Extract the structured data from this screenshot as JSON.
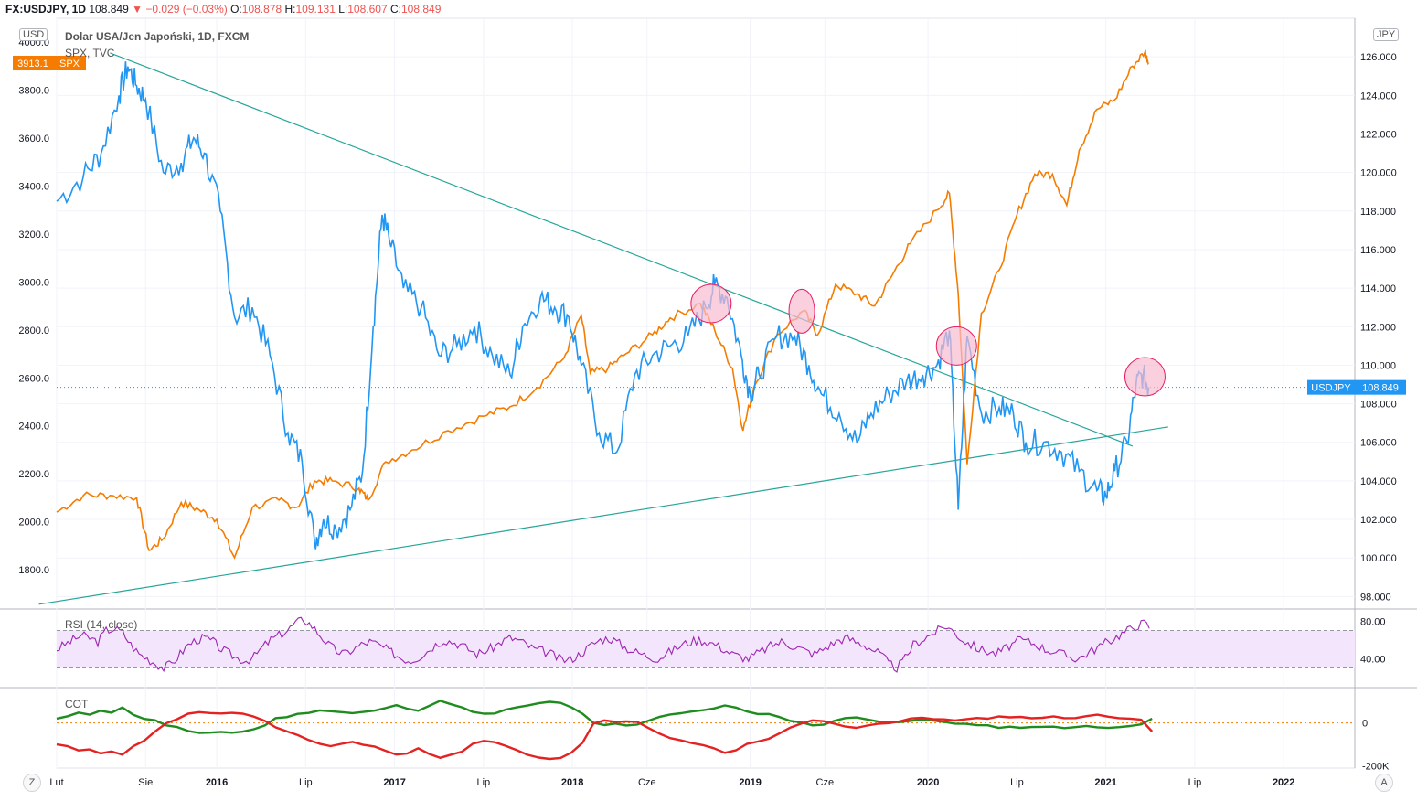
{
  "header": {
    "symbol": "FX:USDJPY, 1D",
    "price": "108.849",
    "change": "−0.029 (−0.03%)",
    "o_label": "O:",
    "o": "108.878",
    "h_label": "H:",
    "h": "109.131",
    "l_label": "L:",
    "l": "108.607",
    "c_label": "C:",
    "c": "108.849"
  },
  "legend": {
    "main": "Dolar USA/Jen Japoński, 1D, FXCM",
    "compare": "SPX, TVC"
  },
  "scale_tags": {
    "left": "USD",
    "right": "JPY"
  },
  "corner_buttons": {
    "left": "Z",
    "right": "A"
  },
  "colors": {
    "usdjpy": "#2196f3",
    "spx": "#f57c00",
    "trendline": "#26a69a",
    "rsi": "#9c27b0",
    "rsi_band": "#f3e5fc",
    "cot_long": "#1e8c1e",
    "cot_short": "#e52222",
    "circle": "#f8bbd0",
    "grid": "#f0f3fa"
  },
  "chart_data": [
    {
      "type": "line",
      "title": "Dolar USA/Jen Japoński, 1D, FXCM",
      "x_ticks": [
        "Lut",
        "Sie",
        "2016",
        "Lip",
        "2017",
        "Lip",
        "2018",
        "Cze",
        "2019",
        "Cze",
        "2020",
        "Lip",
        "2021",
        "Lip",
        "2022"
      ],
      "left_axis": {
        "unit": "USD",
        "ticks": [
          "4000.0",
          "3800.0",
          "3600.0",
          "3400.0",
          "3200.0",
          "3000.0",
          "2800.0",
          "2600.0",
          "2400.0",
          "2200.0",
          "2000.0",
          "1800.0"
        ],
        "ylim": [
          1640,
          4100
        ]
      },
      "right_axis": {
        "unit": "JPY",
        "ticks": [
          "126.000",
          "124.000",
          "122.000",
          "120.000",
          "118.000",
          "116.000",
          "114.000",
          "112.000",
          "110.000",
          "108.000",
          "106.000",
          "104.000",
          "102.000",
          "100.000",
          "98.000"
        ],
        "ylim": [
          97.4,
          128
        ]
      },
      "series": [
        {
          "name": "USDJPY",
          "axis": "right",
          "last_label": "108.849",
          "points": [
            [
              2015.1,
              118.5
            ],
            [
              2015.25,
              119.8
            ],
            [
              2015.35,
              121.0
            ],
            [
              2015.45,
              124.0
            ],
            [
              2015.5,
              125.5
            ],
            [
              2015.55,
              124.5
            ],
            [
              2015.6,
              123.8
            ],
            [
              2015.7,
              120.0
            ],
            [
              2015.8,
              120.5
            ],
            [
              2015.87,
              121.8
            ],
            [
              2015.93,
              121.0
            ],
            [
              2016.02,
              118.0
            ],
            [
              2016.1,
              112.5
            ],
            [
              2016.2,
              113.0
            ],
            [
              2016.3,
              110.5
            ],
            [
              2016.4,
              106.5
            ],
            [
              2016.48,
              105.0
            ],
            [
              2016.55,
              100.8
            ],
            [
              2016.6,
              102.0
            ],
            [
              2016.67,
              101.5
            ],
            [
              2016.75,
              102.5
            ],
            [
              2016.82,
              104.5
            ],
            [
              2016.88,
              112.0
            ],
            [
              2016.93,
              117.8
            ],
            [
              2016.97,
              116.5
            ],
            [
              2017.05,
              114.0
            ],
            [
              2017.15,
              113.0
            ],
            [
              2017.25,
              110.5
            ],
            [
              2017.35,
              111.0
            ],
            [
              2017.45,
              112.0
            ],
            [
              2017.55,
              110.5
            ],
            [
              2017.65,
              109.5
            ],
            [
              2017.72,
              112.0
            ],
            [
              2017.82,
              113.5
            ],
            [
              2017.9,
              113.0
            ],
            [
              2017.98,
              112.5
            ],
            [
              2018.05,
              110.0
            ],
            [
              2018.15,
              106.5
            ],
            [
              2018.25,
              105.5
            ],
            [
              2018.35,
              109.5
            ],
            [
              2018.45,
              110.5
            ],
            [
              2018.55,
              111.0
            ],
            [
              2018.65,
              111.5
            ],
            [
              2018.75,
              113.0
            ],
            [
              2018.8,
              114.2
            ],
            [
              2018.87,
              113.5
            ],
            [
              2018.95,
              110.5
            ],
            [
              2019.0,
              108.5
            ],
            [
              2019.05,
              109.5
            ],
            [
              2019.15,
              111.5
            ],
            [
              2019.25,
              111.5
            ],
            [
              2019.33,
              110.0
            ],
            [
              2019.4,
              108.5
            ],
            [
              2019.5,
              107.5
            ],
            [
              2019.6,
              106.0
            ],
            [
              2019.68,
              107.5
            ],
            [
              2019.78,
              108.5
            ],
            [
              2019.88,
              109.2
            ],
            [
              2019.97,
              109.5
            ],
            [
              2020.05,
              110.0
            ],
            [
              2020.12,
              111.8
            ],
            [
              2020.17,
              102.5
            ],
            [
              2020.22,
              111.5
            ],
            [
              2020.3,
              107.5
            ],
            [
              2020.4,
              107.8
            ],
            [
              2020.48,
              107.5
            ],
            [
              2020.55,
              106.0
            ],
            [
              2020.65,
              106.0
            ],
            [
              2020.75,
              105.5
            ],
            [
              2020.85,
              104.5
            ],
            [
              2020.95,
              103.5
            ],
            [
              2021.0,
              103.2
            ],
            [
              2021.05,
              104.5
            ],
            [
              2021.12,
              106.0
            ],
            [
              2021.17,
              109.0
            ],
            [
              2021.21,
              109.5
            ],
            [
              2021.24,
              108.849
            ]
          ]
        },
        {
          "name": "SPX",
          "axis": "left",
          "last_label": "3913.1",
          "points": [
            [
              2015.1,
              2040
            ],
            [
              2015.25,
              2110
            ],
            [
              2015.4,
              2110
            ],
            [
              2015.55,
              2100
            ],
            [
              2015.62,
              1880
            ],
            [
              2015.7,
              1930
            ],
            [
              2015.8,
              2080
            ],
            [
              2015.9,
              2050
            ],
            [
              2016.0,
              2010
            ],
            [
              2016.1,
              1850
            ],
            [
              2016.2,
              2060
            ],
            [
              2016.35,
              2090
            ],
            [
              2016.45,
              2060
            ],
            [
              2016.55,
              2170
            ],
            [
              2016.65,
              2170
            ],
            [
              2016.8,
              2140
            ],
            [
              2016.85,
              2090
            ],
            [
              2016.95,
              2250
            ],
            [
              2017.1,
              2300
            ],
            [
              2017.3,
              2380
            ],
            [
              2017.5,
              2440
            ],
            [
              2017.65,
              2480
            ],
            [
              2017.8,
              2560
            ],
            [
              2017.95,
              2680
            ],
            [
              2018.05,
              2860
            ],
            [
              2018.1,
              2620
            ],
            [
              2018.2,
              2640
            ],
            [
              2018.3,
              2700
            ],
            [
              2018.45,
              2780
            ],
            [
              2018.55,
              2850
            ],
            [
              2018.72,
              2910
            ],
            [
              2018.8,
              2800
            ],
            [
              2018.9,
              2640
            ],
            [
              2018.96,
              2380
            ],
            [
              2019.02,
              2560
            ],
            [
              2019.15,
              2780
            ],
            [
              2019.3,
              2880
            ],
            [
              2019.38,
              2780
            ],
            [
              2019.48,
              2990
            ],
            [
              2019.6,
              2950
            ],
            [
              2019.7,
              2900
            ],
            [
              2019.8,
              3030
            ],
            [
              2019.9,
              3160
            ],
            [
              2020.05,
              3300
            ],
            [
              2020.12,
              3370
            ],
            [
              2020.17,
              2950
            ],
            [
              2020.22,
              2240
            ],
            [
              2020.3,
              2870
            ],
            [
              2020.4,
              3050
            ],
            [
              2020.5,
              3280
            ],
            [
              2020.6,
              3450
            ],
            [
              2020.7,
              3450
            ],
            [
              2020.78,
              3320
            ],
            [
              2020.85,
              3550
            ],
            [
              2020.95,
              3720
            ],
            [
              2021.05,
              3760
            ],
            [
              2021.15,
              3900
            ],
            [
              2021.22,
              3960
            ],
            [
              2021.24,
              3913.1
            ]
          ]
        }
      ],
      "trendlines": [
        {
          "from": [
            2015.4,
            126.2
          ],
          "to": [
            2021.15,
            105.8
          ]
        },
        {
          "from": [
            2015.0,
            97.6
          ],
          "to": [
            2021.35,
            106.8
          ]
        }
      ],
      "highlight_circles": [
        [
          2018.78,
          113.2
        ],
        [
          2019.29,
          112.8
        ],
        [
          2020.16,
          111.0
        ],
        [
          2021.22,
          109.4
        ]
      ]
    },
    {
      "type": "line",
      "title": "RSI (14, close)",
      "ticks": [
        "80.00",
        "40.00"
      ],
      "ylim": [
        10,
        92
      ],
      "band": [
        30,
        70
      ],
      "series": [
        {
          "name": "RSI",
          "values": [
            50,
            55,
            60,
            65,
            62,
            58,
            70,
            72,
            68,
            55,
            45,
            40,
            35,
            30,
            35,
            45,
            55,
            60,
            62,
            58,
            50,
            45,
            40,
            38,
            42,
            52,
            60,
            65,
            70,
            78,
            82,
            75,
            65,
            55,
            48,
            45,
            50,
            55,
            58,
            55,
            50,
            45,
            40,
            38,
            42,
            48,
            55,
            60,
            58,
            55,
            50,
            45,
            48,
            52,
            58,
            62,
            60,
            55,
            50,
            48,
            45,
            40,
            38,
            42,
            48,
            55,
            60,
            62,
            58,
            52,
            48,
            45,
            42,
            40,
            45,
            50,
            55,
            58,
            60,
            58,
            55,
            50,
            45,
            42,
            40,
            45,
            50,
            55,
            58,
            55,
            52,
            48,
            45,
            50,
            55,
            60,
            62,
            58,
            55,
            50,
            45,
            35,
            30,
            40,
            55,
            60,
            65,
            70,
            75,
            68,
            60,
            55,
            50,
            48,
            45,
            50,
            55,
            60,
            58,
            55,
            50,
            48,
            45,
            42,
            40,
            45,
            50,
            55,
            60,
            65,
            70,
            75,
            78,
            72
          ]
        }
      ]
    },
    {
      "type": "line",
      "title": "COT",
      "ticks": [
        "0",
        "-200K"
      ],
      "ylim": [
        -210,
        160
      ],
      "series": [
        {
          "name": "long",
          "values": [
            20,
            30,
            45,
            40,
            60,
            50,
            70,
            40,
            20,
            10,
            -10,
            -20,
            -40,
            -50,
            -45,
            -40,
            -45,
            -40,
            -30,
            -10,
            20,
            30,
            40,
            50,
            60,
            55,
            50,
            45,
            50,
            55,
            70,
            80,
            70,
            60,
            80,
            100,
            90,
            70,
            50,
            40,
            45,
            60,
            70,
            80,
            90,
            100,
            90,
            70,
            40,
            0,
            -10,
            -5,
            -10,
            -5,
            10,
            30,
            40,
            45,
            50,
            60,
            70,
            80,
            70,
            50,
            45,
            40,
            30,
            10,
            0,
            -10,
            -5,
            10,
            20,
            25,
            20,
            10,
            5,
            0,
            10,
            15,
            10,
            5,
            0,
            -5,
            -10,
            -15,
            -20,
            -20,
            -25,
            -20,
            -15,
            -20,
            -25,
            -20,
            -15,
            -20,
            -25,
            -20,
            -15,
            -10,
            20
          ]
        },
        {
          "name": "short",
          "values": [
            -100,
            -110,
            -130,
            -120,
            -140,
            -130,
            -150,
            -110,
            -80,
            -40,
            0,
            20,
            40,
            50,
            45,
            40,
            45,
            40,
            30,
            10,
            -20,
            -40,
            -60,
            -80,
            -100,
            -110,
            -100,
            -90,
            -100,
            -110,
            -130,
            -150,
            -140,
            -120,
            -140,
            -160,
            -150,
            -130,
            -100,
            -80,
            -90,
            -110,
            -130,
            -150,
            -160,
            -170,
            -160,
            -140,
            -90,
            0,
            10,
            5,
            10,
            5,
            -20,
            -50,
            -70,
            -80,
            -90,
            -100,
            -120,
            -140,
            -130,
            -100,
            -90,
            -70,
            -50,
            -20,
            0,
            15,
            10,
            -5,
            -15,
            -20,
            -15,
            -5,
            0,
            10,
            20,
            25,
            20,
            15,
            10,
            20,
            25,
            20,
            30,
            25,
            30,
            20,
            25,
            30,
            25,
            20,
            30,
            40,
            30,
            25,
            20,
            15,
            -40
          ]
        }
      ]
    }
  ]
}
